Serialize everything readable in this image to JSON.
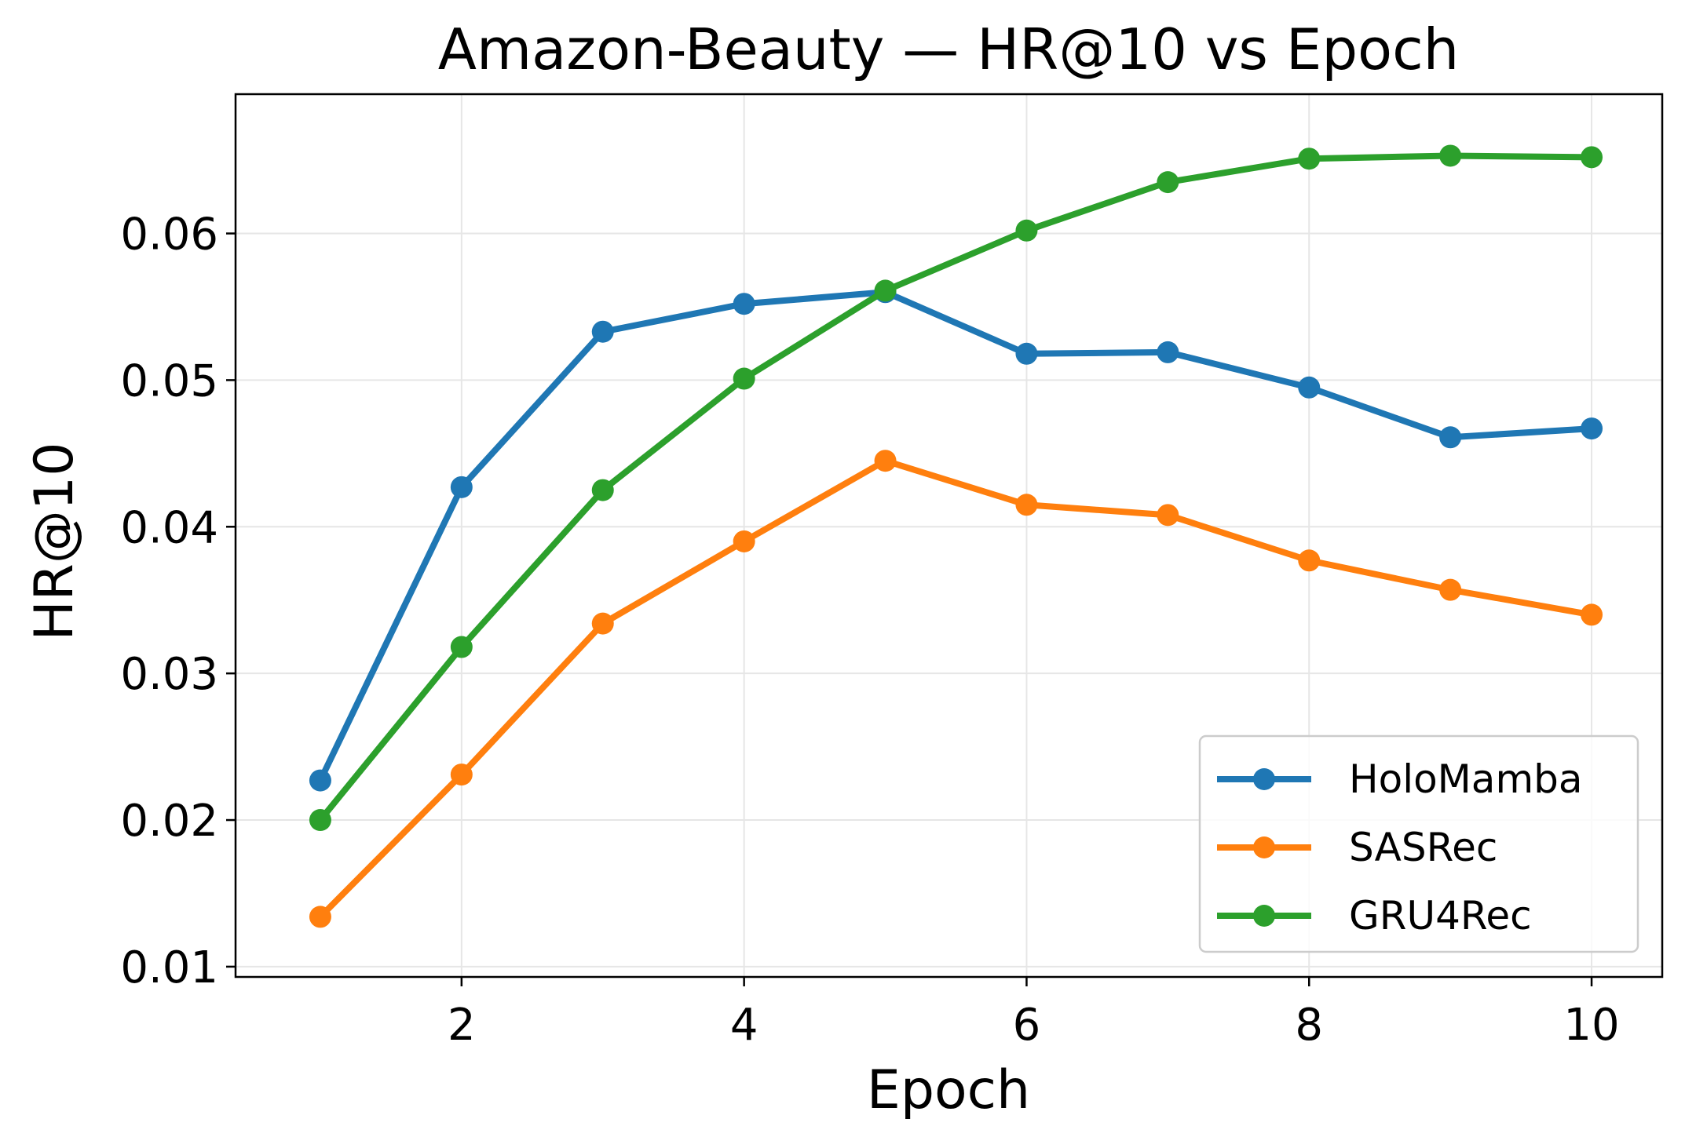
{
  "chart_data": {
    "type": "line",
    "title": "Amazon-Beauty — HR@10 vs Epoch",
    "xlabel": "Epoch",
    "ylabel": "HR@10",
    "x": [
      1,
      2,
      3,
      4,
      5,
      6,
      7,
      8,
      9,
      10
    ],
    "xlim": [
      0.4,
      10.5
    ],
    "ylim": [
      0.0093,
      0.0695
    ],
    "xticks": [
      2,
      4,
      6,
      8,
      10
    ],
    "xtick_labels": [
      "2",
      "4",
      "6",
      "8",
      "10"
    ],
    "yticks": [
      0.01,
      0.02,
      0.03,
      0.04,
      0.05,
      0.06
    ],
    "ytick_labels": [
      "0.01",
      "0.02",
      "0.03",
      "0.04",
      "0.05",
      "0.06"
    ],
    "grid": true,
    "legend_position": "lower-right",
    "series": [
      {
        "name": "HoloMamba",
        "color": "#1f77b4",
        "values": [
          0.0227,
          0.0427,
          0.0533,
          0.0552,
          0.056,
          0.0518,
          0.0519,
          0.0495,
          0.0461,
          0.0467
        ]
      },
      {
        "name": "SASRec",
        "color": "#ff7f0e",
        "values": [
          0.0134,
          0.0231,
          0.0334,
          0.039,
          0.0445,
          0.0415,
          0.0408,
          0.0377,
          0.0357,
          0.034
        ]
      },
      {
        "name": "GRU4Rec",
        "color": "#2ca02c",
        "values": [
          0.02,
          0.0318,
          0.0425,
          0.0501,
          0.0561,
          0.0602,
          0.0635,
          0.0651,
          0.0653,
          0.0652
        ]
      }
    ]
  }
}
